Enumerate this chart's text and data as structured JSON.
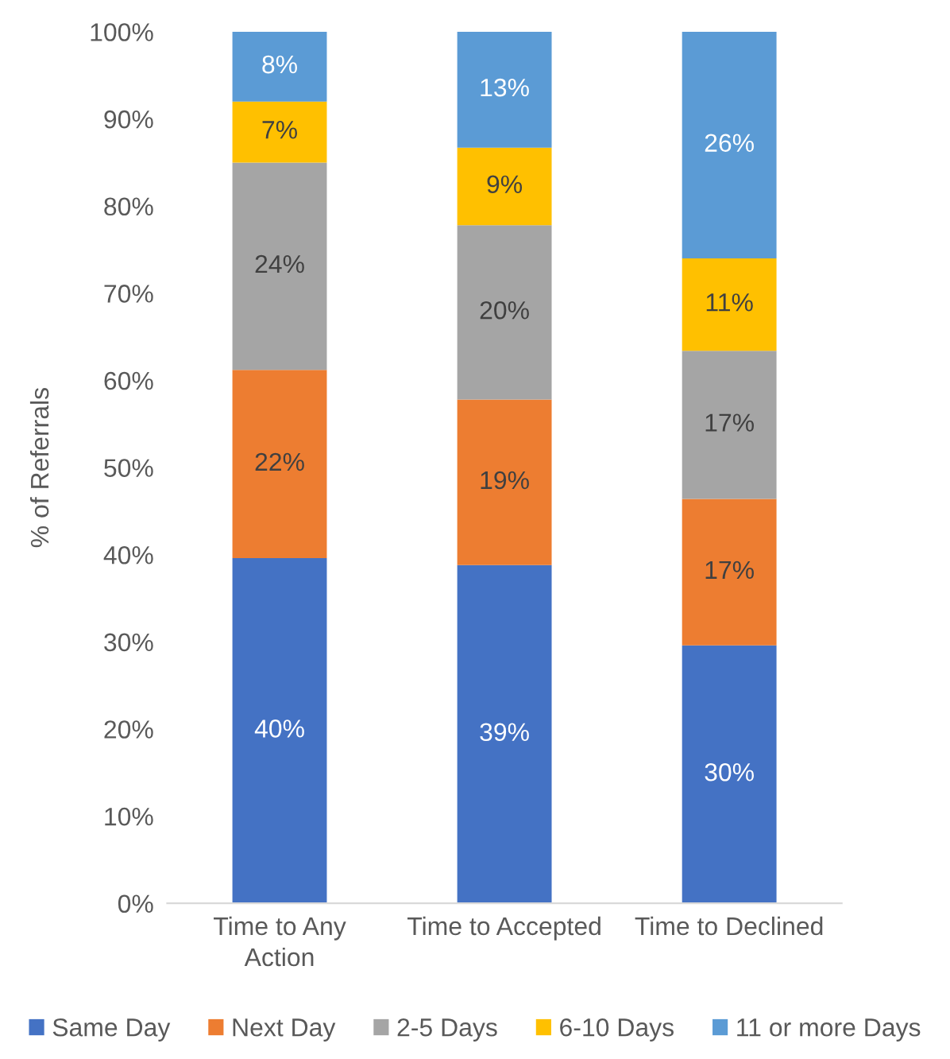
{
  "chart_data": {
    "type": "bar",
    "stacked": true,
    "categories": [
      "Time to Any Action",
      "Time to Accepted",
      "Time to Declined"
    ],
    "series": [
      {
        "name": "Same Day",
        "color": "#4472c4",
        "values": [
          39.6,
          38.8,
          29.6
        ],
        "value_labels": [
          "40%",
          "39%",
          "30%"
        ]
      },
      {
        "name": "Next Day",
        "color": "#ed7d31",
        "values": [
          21.6,
          19.0,
          16.8
        ],
        "value_labels": [
          "22%",
          "19%",
          "17%"
        ]
      },
      {
        "name": "2-5 Days",
        "color": "#a5a5a5",
        "values": [
          23.8,
          20.0,
          17.0
        ],
        "value_labels": [
          "24%",
          "20%",
          "17%"
        ]
      },
      {
        "name": "6-10 Days",
        "color": "#ffc000",
        "values": [
          7.0,
          8.9,
          10.6
        ],
        "value_labels": [
          "7%",
          "9%",
          "11%"
        ]
      },
      {
        "name": "11 or more Days",
        "color": "#5b9bd5",
        "values": [
          8.0,
          13.3,
          26.0
        ],
        "value_labels": [
          "8%",
          "13%",
          "26%"
        ]
      }
    ],
    "ylabel": "% of Referrals",
    "ylim": [
      0,
      100
    ],
    "yticks": [
      {
        "value": 0,
        "label": "0%"
      },
      {
        "value": 10,
        "label": "10%"
      },
      {
        "value": 20,
        "label": "20%"
      },
      {
        "value": 30,
        "label": "30%"
      },
      {
        "value": 40,
        "label": "40%"
      },
      {
        "value": 50,
        "label": "50%"
      },
      {
        "value": 60,
        "label": "60%"
      },
      {
        "value": 70,
        "label": "70%"
      },
      {
        "value": 80,
        "label": "80%"
      },
      {
        "value": 90,
        "label": "90%"
      },
      {
        "value": 100,
        "label": "100%"
      }
    ],
    "legend": "bottom"
  }
}
